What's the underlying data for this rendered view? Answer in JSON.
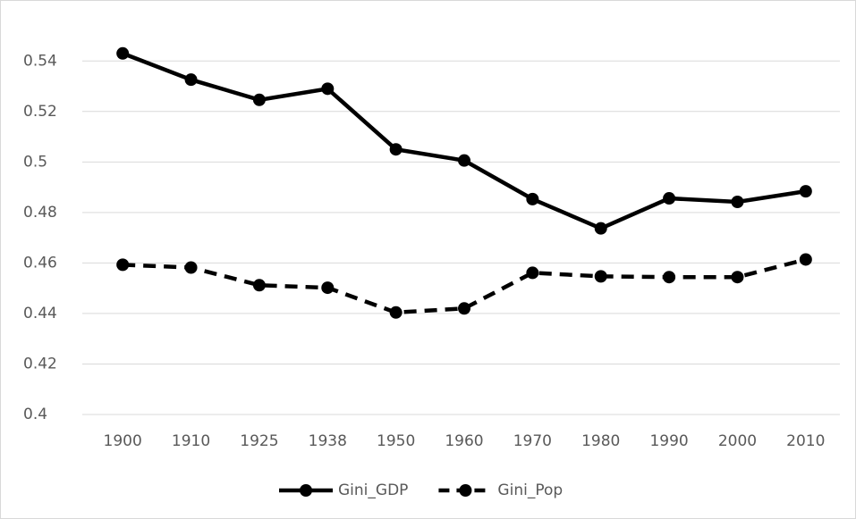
{
  "chart_data": {
    "type": "line",
    "categories": [
      "1900",
      "1910",
      "1925",
      "1938",
      "1950",
      "1960",
      "1970",
      "1980",
      "1990",
      "2000",
      "2010"
    ],
    "series": [
      {
        "name": "Gini_GDP",
        "color": "#000000",
        "line_style": "solid",
        "values": [
          0.543,
          0.5326,
          0.5246,
          0.529,
          0.505,
          0.5006,
          0.4853,
          0.4737,
          0.4856,
          0.4842,
          0.4884
        ]
      },
      {
        "name": "Gini_Pop",
        "color": "#000000",
        "line_style": "dashed",
        "values": [
          0.4593,
          0.4582,
          0.4512,
          0.4502,
          0.4404,
          0.442,
          0.4561,
          0.4547,
          0.4544,
          0.4544,
          0.4614
        ]
      }
    ],
    "ylim": [
      0.4,
      0.55
    ],
    "yticks": [
      0.4,
      0.42,
      0.44,
      0.46,
      0.48,
      0.5,
      0.52,
      0.54
    ],
    "grid": true,
    "legend": "bottom"
  }
}
